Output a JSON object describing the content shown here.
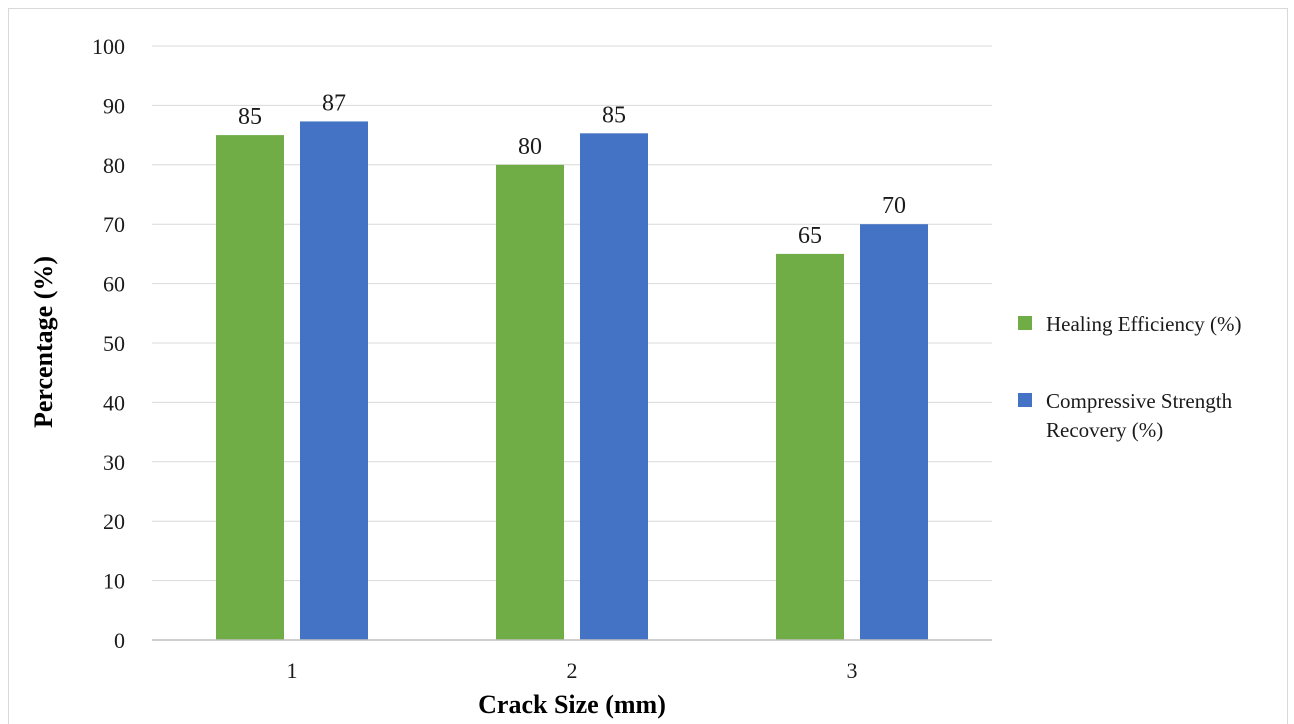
{
  "chart_data": {
    "type": "bar",
    "title": "",
    "xlabel": "Crack Size (mm)",
    "ylabel": "Percentage (%)",
    "categories": [
      "1",
      "2",
      "3"
    ],
    "ylim": [
      0,
      100
    ],
    "yticks": [
      0,
      10,
      20,
      30,
      40,
      50,
      60,
      70,
      80,
      90,
      100
    ],
    "grid": true,
    "legend_position": "right",
    "series": [
      {
        "name": "Healing Efficiency (%)",
        "values": [
          85,
          80,
          65
        ],
        "labels": [
          "85",
          "80",
          "65"
        ],
        "color": "#70ad47"
      },
      {
        "name": "Compressive Strength Recovery (%)",
        "legend_lines": [
          "Compressive Strength",
          "Recovery (%)"
        ],
        "values": [
          87.3,
          85.3,
          70
        ],
        "labels": [
          "87",
          "85",
          "70"
        ],
        "color": "#4472c4"
      }
    ]
  }
}
